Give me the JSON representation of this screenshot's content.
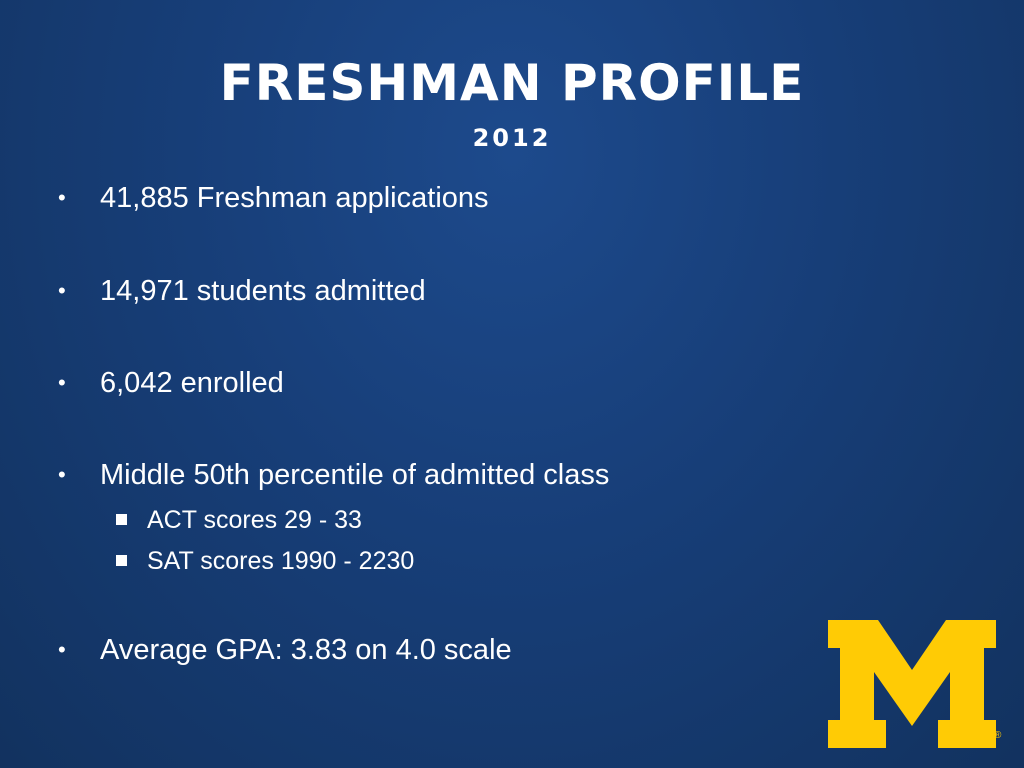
{
  "title": "FRESHMAN PROFILE",
  "subtitle": "2012",
  "bullet_symbol": "•",
  "bullets": [
    {
      "text": "41,885 Freshman applications"
    },
    {
      "text": "14,971 students admitted"
    },
    {
      "text": "6,042 enrolled"
    },
    {
      "text": "Middle 50th percentile of admitted class",
      "sub_items": [
        "ACT scores 29 - 33",
        "SAT scores 1990 - 2230"
      ]
    },
    {
      "text": "Average GPA: 3.83 on 4.0 scale"
    }
  ],
  "logo": {
    "name": "block-m-logo",
    "letter": "M",
    "registered_mark": "®"
  },
  "colors": {
    "background": "#173e78",
    "text": "#ffffff",
    "logo": "#ffcb05"
  }
}
